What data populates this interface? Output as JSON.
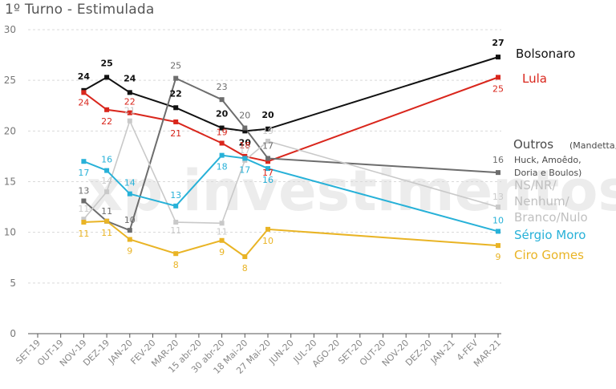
{
  "chart_data": {
    "type": "line",
    "title": "1º Turno - Estimulada",
    "watermark": "xp investimentos",
    "ylim": [
      0,
      30
    ],
    "yticks": [
      0,
      5,
      10,
      15,
      20,
      25,
      30
    ],
    "categories": [
      "SET-19",
      "OUT-19",
      "NOV-19",
      "DEZ-19",
      "JAN-20",
      "FEV-20",
      "MAR-20",
      "15 abr-20",
      "30 abr-20",
      "18 Mai-20",
      "27 Mai-20",
      "JUN-20",
      "JUL-20",
      "AGO-20",
      "SET-20",
      "OUT-20",
      "NOV-20",
      "DEZ-20",
      "JAN-21",
      "4-FEV",
      "MAR-21"
    ],
    "series": [
      {
        "key": "bolsonaro",
        "name": "Bolsonaro",
        "sub": "",
        "color": "#111111",
        "points": [
          [
            2,
            24
          ],
          [
            3,
            25.3
          ],
          [
            4,
            23.8
          ],
          [
            6,
            22.3
          ],
          [
            8,
            20.3
          ],
          [
            9,
            20
          ],
          [
            10,
            20.2
          ],
          [
            20,
            27.3
          ]
        ],
        "labels": [
          "24",
          "25",
          "24",
          "22",
          "20",
          "20",
          "20",
          "27"
        ]
      },
      {
        "key": "lula",
        "name": "Lula",
        "sub": "",
        "color": "#d9261c",
        "points": [
          [
            2,
            23.8
          ],
          [
            3,
            22.1
          ],
          [
            4,
            21.8
          ],
          [
            6,
            20.9
          ],
          [
            8,
            18.8
          ],
          [
            9,
            17.5
          ],
          [
            10,
            17
          ],
          [
            20,
            25.3
          ]
        ],
        "labels": [
          "24",
          "22",
          "22",
          "21",
          "19",
          "18",
          "17",
          "25"
        ]
      },
      {
        "key": "outros",
        "name": "Outros",
        "sub": "(Mandetta, Huck, Amoêdo, Doria e Boulos)",
        "color": "#6d6d6d",
        "points": [
          [
            2,
            13.1
          ],
          [
            3,
            11.1
          ],
          [
            4,
            10.2
          ],
          [
            6,
            25.2
          ],
          [
            8,
            23.1
          ],
          [
            9,
            20.3
          ],
          [
            10,
            17.3
          ],
          [
            20,
            15.9
          ]
        ],
        "labels": [
          "13",
          "11",
          "10",
          "25",
          "23",
          "20",
          "17",
          "16"
        ]
      },
      {
        "key": "ns",
        "name": "NS/NR/ Nenhum/ Branco/Nulo",
        "sub": "",
        "color": "#c9c9c9",
        "points": [
          [
            2,
            11.3
          ],
          [
            3,
            14
          ],
          [
            4,
            21
          ],
          [
            6,
            11
          ],
          [
            8,
            10.9
          ],
          [
            9,
            17.1
          ],
          [
            10,
            19
          ],
          [
            20,
            12.5
          ]
        ],
        "labels": [
          "11",
          "14",
          "21",
          "11",
          "11",
          "17",
          "19",
          "13"
        ]
      },
      {
        "key": "moro",
        "name": "Sérgio Moro",
        "sub": "",
        "color": "#27b1d8",
        "points": [
          [
            2,
            17
          ],
          [
            3,
            16.1
          ],
          [
            4,
            13.8
          ],
          [
            6,
            12.6
          ],
          [
            8,
            17.6
          ],
          [
            9,
            17.3
          ],
          [
            10,
            16.3
          ],
          [
            20,
            10.1
          ]
        ],
        "labels": [
          "17",
          "16",
          "14",
          "13",
          "18",
          "17",
          "16",
          "10"
        ]
      },
      {
        "key": "ciro",
        "name": "Ciro Gomes",
        "sub": "",
        "color": "#e9b425",
        "points": [
          [
            2,
            11
          ],
          [
            3,
            11.1
          ],
          [
            4,
            9.3
          ],
          [
            6,
            7.9
          ],
          [
            8,
            9.2
          ],
          [
            9,
            7.6
          ],
          [
            10,
            10.3
          ],
          [
            20,
            8.7
          ]
        ],
        "labels": [
          "11",
          "11",
          "9",
          "8",
          "9",
          "8",
          "10",
          "9"
        ]
      }
    ],
    "legend": {
      "bolsonaro": "Bolsonaro",
      "lula": "Lula",
      "outros": "Outros",
      "outros_sub1": "(Mandetta,",
      "outros_sub2": "Huck, Amoêdo,",
      "outros_sub3": "Doria e Boulos)",
      "ns1": "NS/NR/",
      "ns2": "Nenhum/",
      "ns3": "Branco/Nulo",
      "moro": "Sérgio Moro",
      "ciro": "Ciro Gomes"
    },
    "grid": true
  }
}
